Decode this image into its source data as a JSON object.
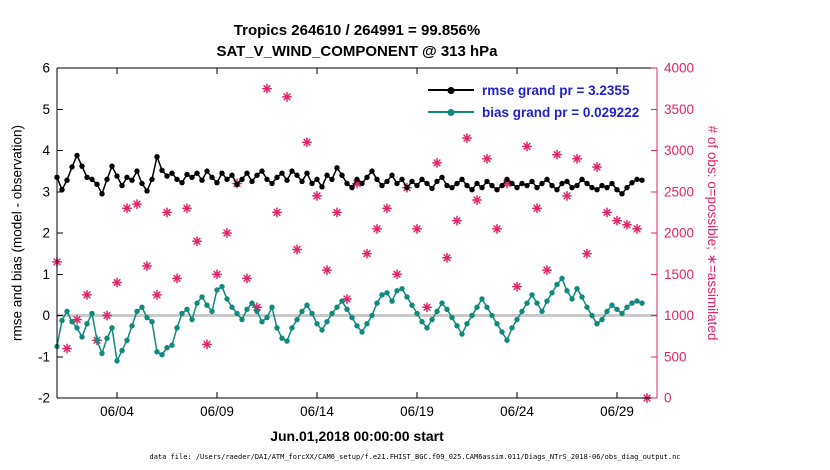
{
  "title_line1": "Tropics 264610 / 264991 = 99.856%",
  "title_line2": "SAT_V_WIND_COMPONENT @ 313 hPa",
  "footer": "data file: /Users/raeder/DAI/ATM_forcXX/CAM6_setup/f.e21.FHIST_BGC.f09_025.CAM6assim.011/Diags_NTrS_2018-06/obs_diag_output.nc",
  "colors": {
    "rmse": "#000000",
    "bias": "#108a7e",
    "obs": "#e0246a",
    "legend_text": "#2222cc",
    "zero_line": "#c9c9c9",
    "axis": "#000000"
  },
  "chart_data": {
    "type": "line",
    "title": "Tropics 264610 / 264991 = 99.856% | SAT_V_WIND_COMPONENT @ 313 hPa",
    "xlabel": "Jun.01,2018 00:00:00 start",
    "ylabel_left": "rmse and bias (model - observation)",
    "ylabel_right": "# of obs: o=possible; ∗=assimilated",
    "xlim_days": [
      1,
      31
    ],
    "x_tick_days": [
      4,
      9,
      14,
      19,
      24,
      29
    ],
    "x_tick_labels": [
      "06/04",
      "06/09",
      "06/14",
      "06/19",
      "06/24",
      "06/29"
    ],
    "ylim_left": [
      -2,
      6
    ],
    "yticks_left": [
      -2,
      -1,
      0,
      1,
      2,
      3,
      4,
      5,
      6
    ],
    "ylim_right": [
      0,
      4000
    ],
    "yticks_right": [
      0,
      500,
      1000,
      1500,
      2000,
      2500,
      3000,
      3500,
      4000
    ],
    "grid": "zero-line only",
    "legend_position": "top-right-inside",
    "zero_line": 0,
    "stats": {
      "rmse_grand_prior": 3.2355,
      "bias_grand_prior": 0.029222
    },
    "series": [
      {
        "name": "rmse grand pr = 3.2355",
        "axis": "left",
        "color": "#000000",
        "marker": "dot",
        "x_start": 1.0,
        "x_step": 0.25,
        "values": [
          3.35,
          3.05,
          3.28,
          3.6,
          3.88,
          3.62,
          3.35,
          3.3,
          3.18,
          2.95,
          3.3,
          3.62,
          3.38,
          3.15,
          3.35,
          3.28,
          3.5,
          3.2,
          3.02,
          3.3,
          3.85,
          3.52,
          3.38,
          3.45,
          3.3,
          3.22,
          3.42,
          3.35,
          3.45,
          3.28,
          3.5,
          3.35,
          3.22,
          3.45,
          3.3,
          3.4,
          3.18,
          3.3,
          3.45,
          3.25,
          3.4,
          3.5,
          3.3,
          3.2,
          3.35,
          3.45,
          3.28,
          3.5,
          3.4,
          3.25,
          3.45,
          3.2,
          3.3,
          3.12,
          3.4,
          3.3,
          3.58,
          3.4,
          3.2,
          3.1,
          3.3,
          3.2,
          3.35,
          3.5,
          3.3,
          3.15,
          3.25,
          3.4,
          3.2,
          3.3,
          3.1,
          3.25,
          3.15,
          3.3,
          3.2,
          3.08,
          3.25,
          3.35,
          3.15,
          3.1,
          3.2,
          3.3,
          3.15,
          3.05,
          3.2,
          3.1,
          3.25,
          3.15,
          3.05,
          3.15,
          3.3,
          3.2,
          3.1,
          3.2,
          3.15,
          3.25,
          3.1,
          3.2,
          3.3,
          3.15,
          3.05,
          3.2,
          3.25,
          3.1,
          3.15,
          3.3,
          3.2,
          3.1,
          3.05,
          3.15,
          3.1,
          3.2,
          3.05,
          2.95,
          3.1,
          3.22,
          3.3,
          3.28
        ]
      },
      {
        "name": "bias grand pr = 0.029222",
        "axis": "left",
        "color": "#108a7e",
        "marker": "dot",
        "x_start": 1.0,
        "x_step": 0.25,
        "values": [
          -0.75,
          -0.12,
          0.1,
          -0.15,
          -0.3,
          -0.52,
          -0.2,
          0.05,
          -0.6,
          -0.92,
          -0.55,
          -0.3,
          -1.1,
          -0.85,
          -0.6,
          -0.25,
          0.1,
          0.2,
          -0.05,
          -0.15,
          -0.88,
          -0.95,
          -0.78,
          -0.72,
          -0.3,
          0.05,
          0.15,
          -0.1,
          0.3,
          0.45,
          0.25,
          0.1,
          0.62,
          0.7,
          0.4,
          0.2,
          0.05,
          -0.1,
          0.15,
          0.3,
          0.1,
          -0.15,
          -0.05,
          0.2,
          -0.3,
          -0.55,
          -0.62,
          -0.3,
          -0.1,
          0.1,
          0.25,
          0.05,
          -0.2,
          -0.35,
          -0.15,
          0.05,
          0.2,
          0.35,
          0.15,
          -0.05,
          -0.25,
          -0.4,
          -0.2,
          0.0,
          0.3,
          0.5,
          0.55,
          0.35,
          0.6,
          0.65,
          0.45,
          0.25,
          0.05,
          -0.15,
          -0.3,
          -0.1,
          0.1,
          0.3,
          0.15,
          -0.05,
          -0.25,
          -0.45,
          -0.2,
          0.0,
          0.2,
          0.4,
          0.2,
          0.0,
          -0.2,
          -0.4,
          -0.6,
          -0.3,
          -0.1,
          0.1,
          0.3,
          0.5,
          0.3,
          0.1,
          0.35,
          0.55,
          0.75,
          0.9,
          0.6,
          0.4,
          0.65,
          0.45,
          0.2,
          0.0,
          -0.2,
          -0.1,
          0.1,
          0.25,
          0.15,
          0.05,
          0.2,
          0.3,
          0.35,
          0.3
        ]
      },
      {
        "name": "# of obs assimilated",
        "axis": "right",
        "color": "#e0246a",
        "marker": "asterisk",
        "x_start": 1.0,
        "x_step": 0.5,
        "values": [
          1650,
          600,
          950,
          1250,
          700,
          1000,
          1400,
          2300,
          2350,
          1600,
          1250,
          2250,
          1450,
          2300,
          1900,
          650,
          1500,
          2000,
          2600,
          1450,
          1100,
          3750,
          2250,
          3650,
          1800,
          3100,
          2450,
          1550,
          2250,
          1200,
          2600,
          1750,
          2050,
          2300,
          1500,
          2550,
          2050,
          1100,
          2850,
          1700,
          2150,
          3150,
          2400,
          2900,
          2050,
          2600,
          1350,
          3050,
          2300,
          1550,
          2950,
          2450,
          2900,
          1750,
          2800,
          2250,
          2150,
          2100,
          2050,
          0
        ]
      }
    ]
  }
}
